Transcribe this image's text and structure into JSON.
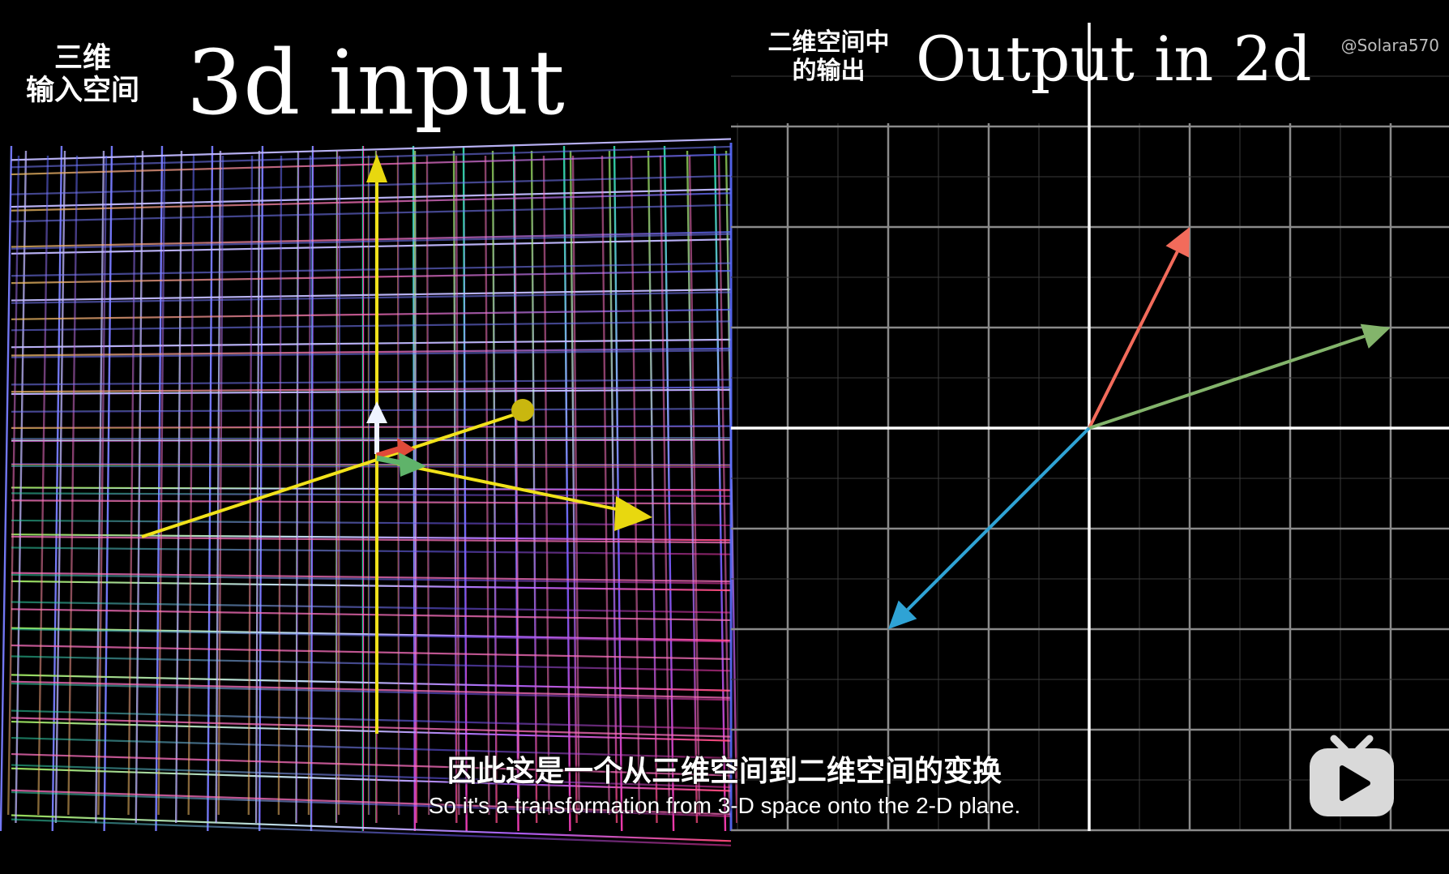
{
  "left_panel": {
    "title_cn_line1": "三维",
    "title_cn_line2": "输入空间",
    "title_en": "3d input"
  },
  "right_panel": {
    "title_cn_line1": "二维空间中",
    "title_cn_line2": "的输出",
    "title_en": "Output in 2d"
  },
  "watermark": "@Solara570",
  "subtitles": {
    "cn": "因此这是一个从三维空间到二维空间的变换",
    "en": "So it's a transformation from 3-D space onto the 2-D plane."
  },
  "vectors": [
    {
      "name": "i-hat-output",
      "color": "#f26b5b",
      "x": 1,
      "y": 2
    },
    {
      "name": "j-hat-output",
      "color": "#83b46b",
      "x": 3,
      "y": 1
    },
    {
      "name": "k-hat-output",
      "color": "#2fa3d5",
      "x": -2,
      "y": -2
    }
  ],
  "logo_icon": "bilibili-tv-play-icon"
}
